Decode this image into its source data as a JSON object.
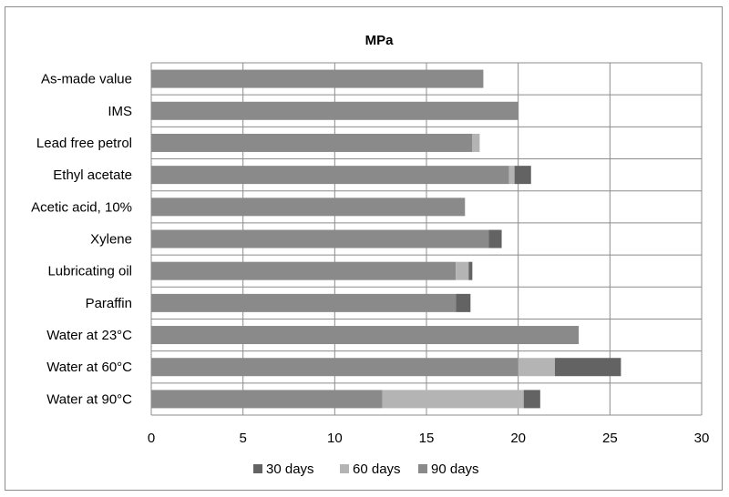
{
  "chart_data": {
    "type": "bar",
    "orientation": "horizontal",
    "stacked": true,
    "title": "MPa",
    "xlabel": "",
    "ylabel": "",
    "xlim": [
      0,
      30
    ],
    "x_ticks": [
      "0",
      "5",
      "10",
      "15",
      "20",
      "25",
      "30"
    ],
    "grid": "vertical",
    "legend_position": "bottom",
    "categories": [
      "As-made value",
      "IMS",
      "Lead free petrol",
      "Ethyl acetate",
      "Acetic acid, 10%",
      "Xylene",
      "Lubricating oil",
      "Paraffin",
      "Water at 23°C",
      "Water at 60°C",
      "Water at 90°C"
    ],
    "series": [
      {
        "name": "90 days",
        "color": "#8a8a8a",
        "values": [
          18.1,
          20.0,
          17.5,
          19.5,
          17.1,
          18.4,
          16.6,
          16.6,
          23.3,
          20.0,
          12.6
        ]
      },
      {
        "name": "60 days",
        "color": "#b4b4b4",
        "values": [
          0,
          0,
          0.4,
          0.3,
          0,
          0,
          0.7,
          0,
          0,
          2.0,
          7.7
        ]
      },
      {
        "name": "30 days",
        "color": "#636363",
        "values": [
          0,
          0,
          0,
          0.9,
          0,
          0.7,
          0.2,
          0.8,
          0,
          3.6,
          0.9
        ]
      }
    ],
    "legend_order": [
      "30 days",
      "60 days",
      "90 days"
    ]
  }
}
